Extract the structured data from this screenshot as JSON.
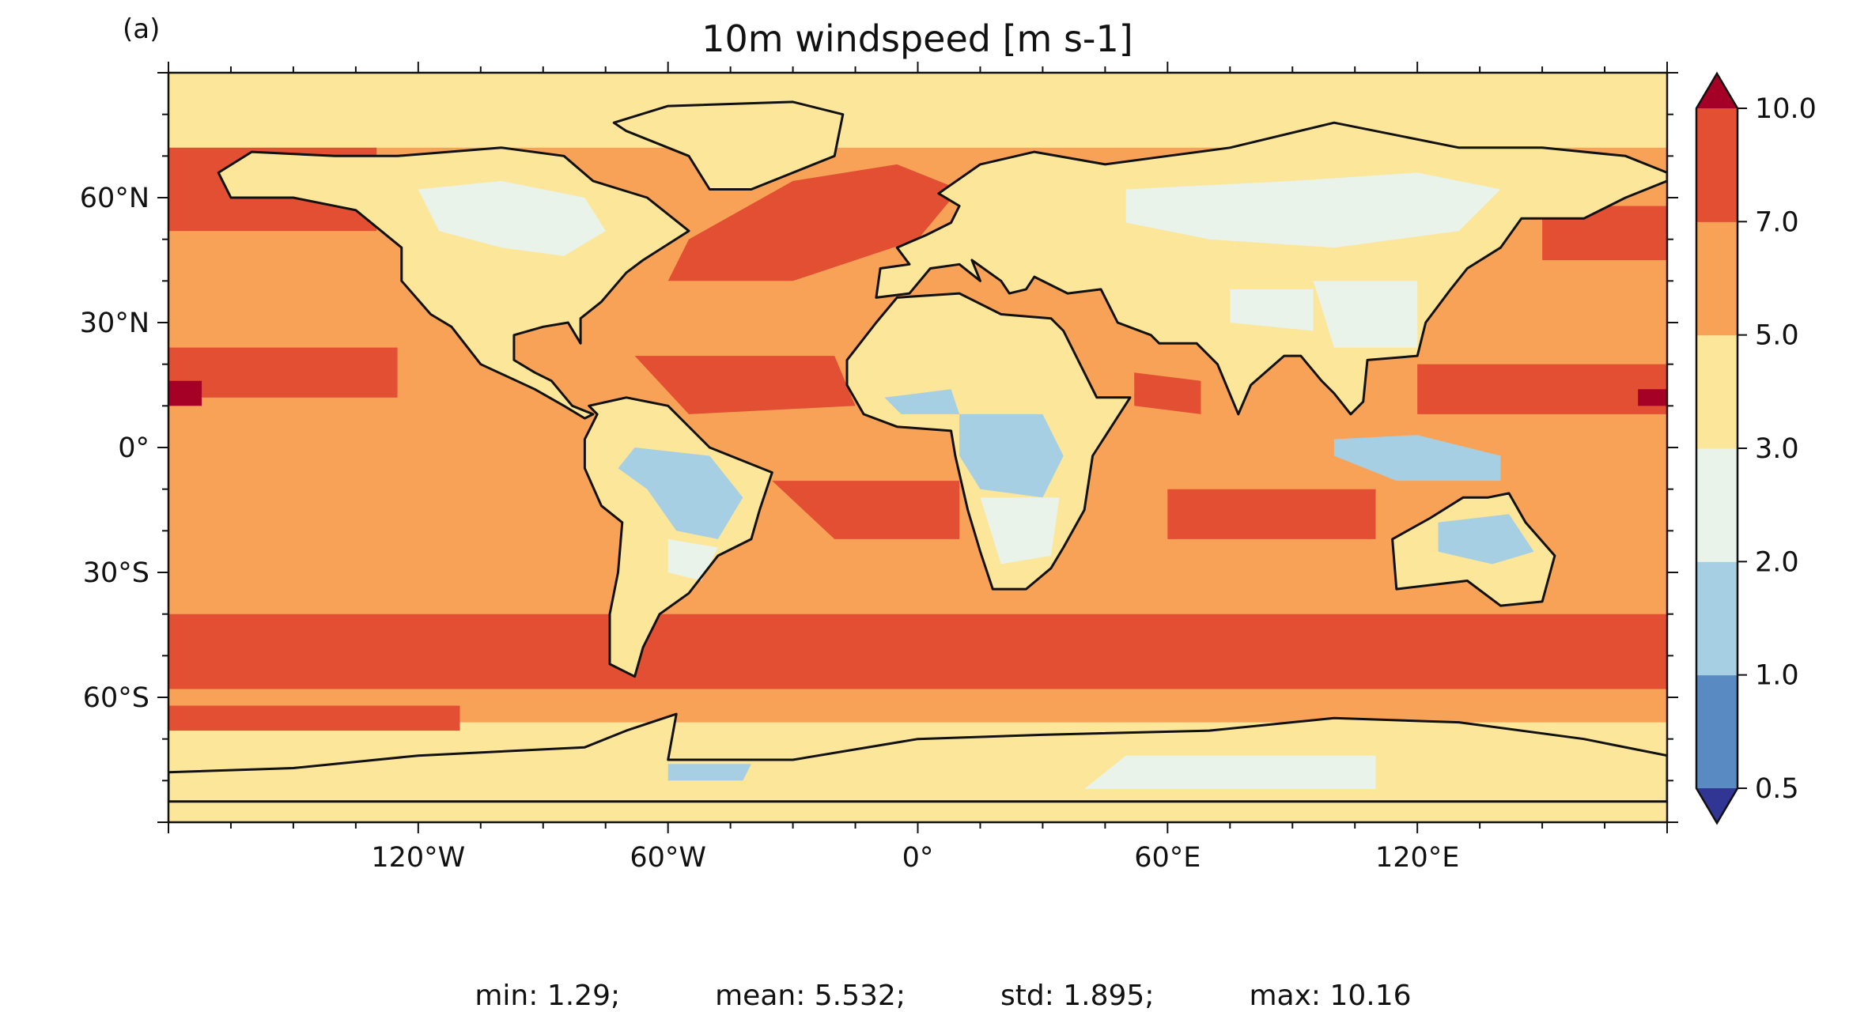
{
  "panel_label": "(a)",
  "chart_data": {
    "type": "heatmap",
    "title": "10m windspeed [m s-1]",
    "projection": "PlateCarree",
    "xlim": [
      -180,
      180
    ],
    "ylim": [
      -90,
      90
    ],
    "xticks": [
      {
        "value": -120,
        "label": "120°W"
      },
      {
        "value": -60,
        "label": "60°W"
      },
      {
        "value": 0,
        "label": "0°"
      },
      {
        "value": 60,
        "label": "60°E"
      },
      {
        "value": 120,
        "label": "120°E"
      }
    ],
    "yticks": [
      {
        "value": 60,
        "label": "60°N"
      },
      {
        "value": 30,
        "label": "30°N"
      },
      {
        "value": 0,
        "label": "0°"
      },
      {
        "value": -30,
        "label": "30°S"
      },
      {
        "value": -60,
        "label": "60°S"
      }
    ],
    "colorbar": {
      "levels": [
        0.5,
        1.0,
        2.0,
        3.0,
        5.0,
        7.0,
        10.0
      ],
      "tick_labels": [
        "0.5",
        "1.0",
        "2.0",
        "3.0",
        "5.0",
        "7.0",
        "10.0"
      ],
      "colors": [
        "#5a8ac2",
        "#a6cfe4",
        "#e9f3ea",
        "#fce69a",
        "#f7a257",
        "#e24f33"
      ],
      "under_color": "#313695",
      "over_color": "#a50026",
      "extend": "both"
    },
    "colors": {
      "ocean_base": "#f7a257",
      "land_base": "#fce69a",
      "strong": "#e24f33",
      "light": "#e9f3ea",
      "calm": "#a6cfe4",
      "extreme": "#a50026"
    },
    "stats": {
      "min": "min: 1.29;",
      "mean": "mean: 5.532;",
      "std": "std: 1.895;",
      "max": "max: 10.16"
    }
  }
}
